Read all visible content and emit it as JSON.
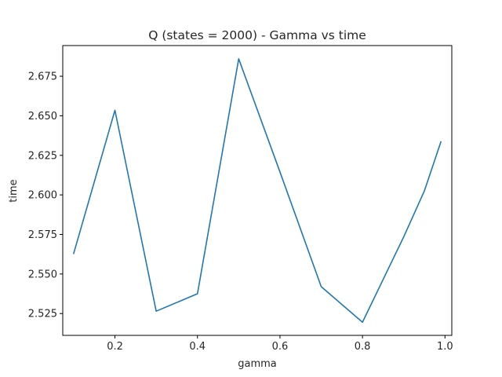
{
  "chart_data": {
    "type": "line",
    "title": "Q (states = 2000) - Gamma vs time",
    "xlabel": "gamma",
    "ylabel": "time",
    "xlim": [
      0.0735,
      1.0165
    ],
    "ylim": [
      2.5112,
      2.6944
    ],
    "xticks": [
      0.2,
      0.4,
      0.6,
      0.8,
      1.0
    ],
    "xtick_labels": [
      "0.2",
      "0.4",
      "0.6",
      "0.8",
      "1.0"
    ],
    "yticks": [
      2.525,
      2.55,
      2.575,
      2.6,
      2.625,
      2.65,
      2.675
    ],
    "ytick_labels": [
      "2.525",
      "2.550",
      "2.575",
      "2.600",
      "2.625",
      "2.650",
      "2.675"
    ],
    "grid": false,
    "series": [
      {
        "color": "#1f77b4",
        "x": [
          0.1,
          0.2,
          0.3,
          0.4,
          0.5,
          0.6,
          0.7,
          0.8,
          0.9,
          0.95,
          0.99
        ],
        "y": [
          2.563,
          2.6535,
          2.5265,
          2.5375,
          2.686,
          2.6145,
          2.542,
          2.5195,
          2.5735,
          2.6025,
          2.6335
        ]
      }
    ]
  }
}
